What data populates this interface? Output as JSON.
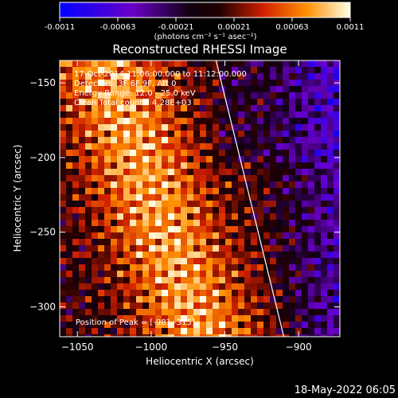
{
  "colorbar": {
    "tick_labels": [
      "-0.0011",
      "-0.00063",
      "-0.00021",
      "0.00021",
      "0.00063",
      "0.0011"
    ],
    "units": "(photons cm⁻² s⁻¹ asec⁻²)",
    "range": [
      -0.0011,
      0.0011
    ]
  },
  "footer": {
    "timestamp": "18-May-2022 06:05"
  },
  "chart_data": {
    "type": "heatmap",
    "title": "Reconstructed RHESSI Image",
    "xlabel": "Heliocentric X (arcsec)",
    "ylabel": "Heliocentric Y (arcsec)",
    "xlim": [
      -1062,
      -872
    ],
    "ylim": [
      -320,
      -135
    ],
    "x_ticks": [
      -1050,
      -1000,
      -950,
      -900
    ],
    "y_ticks": [
      -150,
      -200,
      -250,
      -300
    ],
    "annotations": [
      "17-Oct-2014 11:06:00.000 to 11:12:00.000",
      "Detectors: 3F 6F 9F, Att 0",
      "Energy Range: 12.0 - 25.0 keV",
      "Clean     Total counts: 4.28E+03"
    ],
    "peak_label": "Position of Peak = [-981,-315]",
    "limb_line": {
      "x": [
        -956,
        -910
      ],
      "y": [
        -135,
        -320
      ]
    },
    "grid": false,
    "legend": "none"
  }
}
